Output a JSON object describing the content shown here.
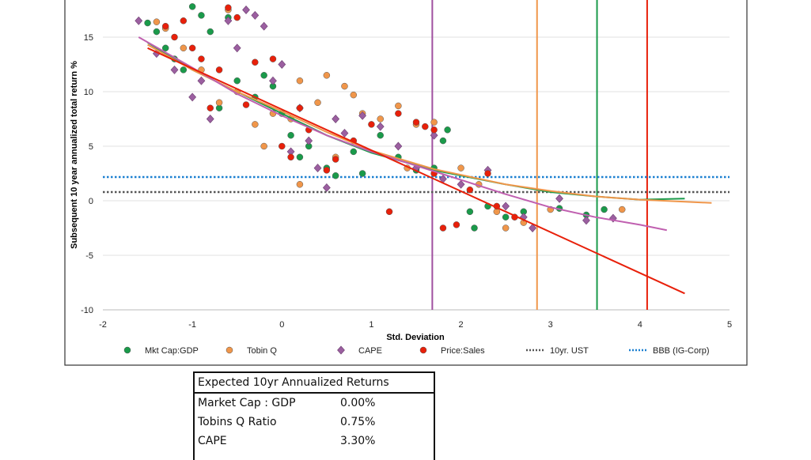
{
  "chart_data": {
    "type": "scatter",
    "xlabel": "Std. Deviation",
    "ylabel": "Subsequent 10 year annualized total return %",
    "xlim": [
      -2,
      5
    ],
    "ylim": [
      -10,
      18.4
    ],
    "xticks": [
      "-2",
      "-1",
      "0",
      "1",
      "2",
      "3",
      "4",
      "5"
    ],
    "yticks": [
      "-10",
      "-5",
      "0",
      "5",
      "10",
      "15"
    ],
    "grid": "horizontal",
    "legend_position": "bottom",
    "series": [
      {
        "name": "Mkt Cap:GDP",
        "marker": "circle",
        "color": "#1a9a4a",
        "points": [
          [
            -1.5,
            16.3
          ],
          [
            -1.4,
            15.5
          ],
          [
            -1.3,
            14
          ],
          [
            -1.2,
            13
          ],
          [
            -1.0,
            17.8
          ],
          [
            -0.9,
            17
          ],
          [
            -0.8,
            15.5
          ],
          [
            -0.6,
            16.8
          ],
          [
            -0.5,
            11
          ],
          [
            -0.3,
            9.5
          ],
          [
            -0.2,
            11.5
          ],
          [
            -0.1,
            10.5
          ],
          [
            0,
            8
          ],
          [
            0.1,
            6
          ],
          [
            0.3,
            5
          ],
          [
            0.5,
            3
          ],
          [
            0.6,
            2.3
          ],
          [
            0.8,
            4.5
          ],
          [
            0.9,
            2.5
          ],
          [
            1.1,
            6
          ],
          [
            1.3,
            4
          ],
          [
            1.5,
            2.8
          ],
          [
            1.7,
            3
          ],
          [
            1.8,
            5.5
          ],
          [
            1.85,
            6.5
          ],
          [
            2.1,
            -1
          ],
          [
            2.15,
            -2.5
          ],
          [
            2.3,
            -0.5
          ],
          [
            2.5,
            -1.5
          ],
          [
            2.7,
            -1
          ],
          [
            3.1,
            -0.7
          ],
          [
            3.4,
            -1.3
          ],
          [
            3.6,
            -0.8
          ],
          [
            -0.7,
            8.5
          ],
          [
            0.2,
            4
          ],
          [
            -1.1,
            12
          ]
        ]
      },
      {
        "name": "Tobin Q",
        "marker": "circle",
        "color": "#f0964a",
        "points": [
          [
            -1.4,
            16.4
          ],
          [
            -1.3,
            15.8
          ],
          [
            -1.1,
            14
          ],
          [
            -0.9,
            12
          ],
          [
            -0.7,
            9
          ],
          [
            -0.6,
            17.5
          ],
          [
            -0.5,
            10
          ],
          [
            -0.3,
            7
          ],
          [
            -0.1,
            8
          ],
          [
            0.1,
            7.5
          ],
          [
            0.2,
            11
          ],
          [
            0.4,
            9
          ],
          [
            0.5,
            11.5
          ],
          [
            0.7,
            10.5
          ],
          [
            0.8,
            9.7
          ],
          [
            0.9,
            8
          ],
          [
            1.1,
            7.5
          ],
          [
            1.3,
            8.7
          ],
          [
            1.5,
            7
          ],
          [
            1.7,
            7.2
          ],
          [
            2.0,
            3
          ],
          [
            2.2,
            1.5
          ],
          [
            2.4,
            -1
          ],
          [
            2.5,
            -2.5
          ],
          [
            2.7,
            -2
          ],
          [
            3.0,
            -0.8
          ],
          [
            3.8,
            -0.8
          ],
          [
            0.2,
            1.5
          ],
          [
            -0.2,
            5
          ],
          [
            1.4,
            3
          ],
          [
            0.6,
            4
          ]
        ]
      },
      {
        "name": "CAPE",
        "marker": "diamond",
        "color": "#9b5fa0",
        "points": [
          [
            -1.6,
            16.5
          ],
          [
            -1.4,
            13.5
          ],
          [
            -1.2,
            12
          ],
          [
            -1.0,
            9.5
          ],
          [
            -0.9,
            11
          ],
          [
            -0.8,
            7.5
          ],
          [
            -0.6,
            16.5
          ],
          [
            -0.4,
            17.5
          ],
          [
            -0.3,
            17
          ],
          [
            -0.2,
            16
          ],
          [
            -0.1,
            11
          ],
          [
            0,
            12.5
          ],
          [
            0.2,
            8.5
          ],
          [
            0.3,
            5.5
          ],
          [
            0.4,
            3
          ],
          [
            0.5,
            1.2
          ],
          [
            0.6,
            7.5
          ],
          [
            0.7,
            6.2
          ],
          [
            0.9,
            7.8
          ],
          [
            1.1,
            6.8
          ],
          [
            1.3,
            5
          ],
          [
            1.5,
            3
          ],
          [
            1.7,
            6
          ],
          [
            1.8,
            2
          ],
          [
            2.0,
            1.5
          ],
          [
            2.3,
            2.8
          ],
          [
            2.5,
            -0.5
          ],
          [
            2.7,
            -1.5
          ],
          [
            2.8,
            -2.5
          ],
          [
            3.1,
            0.2
          ],
          [
            3.4,
            -1.8
          ],
          [
            3.7,
            -1.6
          ],
          [
            -0.5,
            14
          ],
          [
            0.1,
            4.5
          ]
        ]
      },
      {
        "name": "Price:Sales",
        "marker": "circle",
        "color": "#e8200a",
        "points": [
          [
            -1.3,
            16
          ],
          [
            -1.2,
            15
          ],
          [
            -1.1,
            16.5
          ],
          [
            -1.0,
            14
          ],
          [
            -0.9,
            13
          ],
          [
            -0.7,
            12
          ],
          [
            -0.6,
            17.7
          ],
          [
            -0.5,
            16.8
          ],
          [
            -0.3,
            12.7
          ],
          [
            -0.1,
            13
          ],
          [
            0,
            5
          ],
          [
            0.1,
            4
          ],
          [
            0.2,
            8.5
          ],
          [
            0.3,
            6.5
          ],
          [
            0.5,
            2.8
          ],
          [
            0.8,
            5.5
          ],
          [
            1.0,
            7
          ],
          [
            1.2,
            -1
          ],
          [
            1.3,
            8
          ],
          [
            1.5,
            7.2
          ],
          [
            1.6,
            6.8
          ],
          [
            1.7,
            6.5
          ],
          [
            1.7,
            2.5
          ],
          [
            1.8,
            -2.5
          ],
          [
            1.95,
            -2.2
          ],
          [
            2.1,
            1
          ],
          [
            2.3,
            2.5
          ],
          [
            2.4,
            -0.5
          ],
          [
            2.6,
            -1.5
          ],
          [
            -0.4,
            8.8
          ],
          [
            -0.8,
            8.5
          ],
          [
            0.6,
            3.8
          ]
        ]
      }
    ],
    "trendlines": [
      {
        "series": "Mkt Cap:GDP",
        "color": "#1a9a4a",
        "points": [
          [
            -1.5,
            14.5
          ],
          [
            -1,
            12
          ],
          [
            -0.5,
            10
          ],
          [
            0,
            8
          ],
          [
            0.5,
            6
          ],
          [
            1,
            4.4
          ],
          [
            1.7,
            2.8
          ],
          [
            2.5,
            1.5
          ],
          [
            3,
            0.8
          ],
          [
            3.5,
            0.4
          ],
          [
            4,
            0.1
          ],
          [
            4.5,
            0.2
          ]
        ]
      },
      {
        "series": "Tobin Q",
        "color": "#f0964a",
        "points": [
          [
            -1.5,
            14.3
          ],
          [
            -1,
            12
          ],
          [
            -0.5,
            10
          ],
          [
            0,
            8.2
          ],
          [
            0.5,
            6.3
          ],
          [
            1,
            4.6
          ],
          [
            1.7,
            2.9
          ],
          [
            2.5,
            1.5
          ],
          [
            3,
            0.9
          ],
          [
            3.5,
            0.4
          ],
          [
            4,
            0.1
          ],
          [
            4.8,
            -0.2
          ]
        ]
      },
      {
        "series": "CAPE",
        "color": "#c060b0",
        "points": [
          [
            -1.6,
            15
          ],
          [
            -1,
            12.2
          ],
          [
            -0.5,
            9.8
          ],
          [
            0,
            7.8
          ],
          [
            0.5,
            6
          ],
          [
            1,
            4.5
          ],
          [
            1.7,
            2.7
          ],
          [
            2.5,
            0.6
          ],
          [
            3,
            -0.6
          ],
          [
            3.5,
            -1.5
          ],
          [
            4,
            -2.2
          ],
          [
            4.3,
            -2.7
          ]
        ]
      },
      {
        "series": "Price:Sales",
        "color": "#e8200a",
        "points": [
          [
            -1.5,
            14
          ],
          [
            4.5,
            -8.5
          ]
        ]
      }
    ],
    "vertical_lines": [
      {
        "x": 1.68,
        "color": "#a050a0"
      },
      {
        "x": 2.85,
        "color": "#f0964a"
      },
      {
        "x": 3.52,
        "color": "#1a9a4a"
      },
      {
        "x": 4.08,
        "color": "#e8200a"
      }
    ],
    "reference_lines": [
      {
        "name": "10yr. UST",
        "y": 0.8,
        "color": "#555555"
      },
      {
        "name": "BBB (IG-Corp)",
        "y": 2.17,
        "color": "#1a7fd0"
      }
    ]
  },
  "table": {
    "title": "Expected 10yr Annualized Returns",
    "rows": [
      {
        "label": "Market Cap : GDP",
        "value": "0.00%"
      },
      {
        "label": "Tobins Q Ratio",
        "value": "0.75%"
      },
      {
        "label": "CAPE",
        "value": "3.30%"
      }
    ]
  }
}
